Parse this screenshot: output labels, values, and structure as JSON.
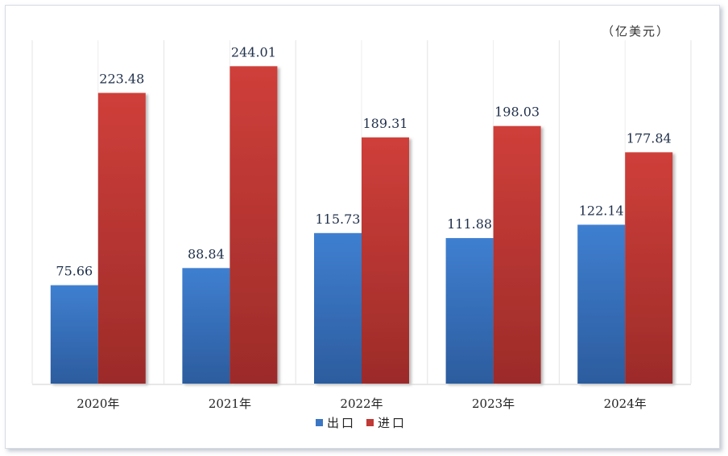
{
  "chart_data": {
    "type": "bar",
    "unit_label": "（亿美元）",
    "categories": [
      "2020年",
      "2021年",
      "2022年",
      "2023年",
      "2024年"
    ],
    "series": [
      {
        "name": "出口",
        "color": "#3b76c4",
        "values": [
          75.66,
          88.84,
          115.73,
          111.88,
          122.14
        ]
      },
      {
        "name": "进口",
        "color": "#c03a36",
        "values": [
          223.48,
          244.01,
          189.31,
          198.03,
          177.84
        ]
      }
    ],
    "ylim": [
      0,
      264
    ],
    "grid": "vertical",
    "legend_position": "bottom"
  }
}
